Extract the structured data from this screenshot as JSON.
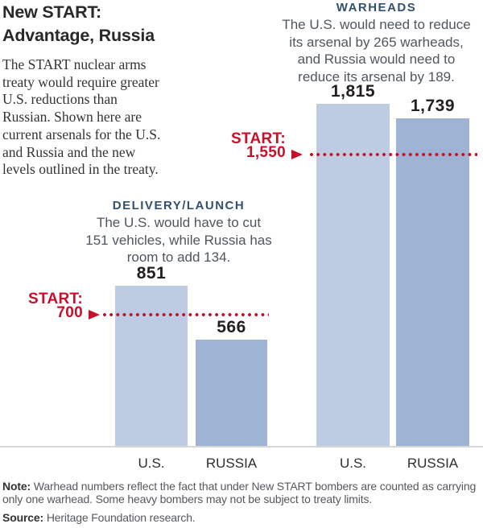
{
  "colors": {
    "start_red": "#c9102b",
    "header_navy": "#33516d",
    "bar_us_light": "#bdcce3",
    "bar_russia_dark": "#9fb3d4"
  },
  "header": {
    "title": "New START:\nAdvantage, Russia",
    "intro": "The START nuclear arms\ntreaty would require greater\nU.S. reductions than\nRussian. Shown here are\ncurrent arsenals for the U.S.\nand Russia and the new\nlevels outlined in the treaty."
  },
  "chart_data": {
    "type": "bar",
    "title": "New START: Advantage, Russia",
    "grid": false,
    "legend": false,
    "ylim": [
      0,
      2370
    ],
    "series_colors": {
      "U.S.": "#bdcce3",
      "RUSSIA": "#9fb3d4"
    },
    "groups": [
      {
        "label": "DELIVERY/LAUNCH",
        "annotation": "The U.S. would have to cut\n151 vehicles, while Russia has\nroom to add 134.",
        "categories": [
          "U.S.",
          "RUSSIA"
        ],
        "values": [
          851,
          566
        ],
        "value_labels": [
          "851",
          "566"
        ],
        "start_limit": 700,
        "start_limit_label": "START:\n700"
      },
      {
        "label": "WARHEADS",
        "annotation": "The U.S. would need to reduce\nits arsenal by 265 warheads,\nand Russia would need to\nreduce its arsenal by 189.",
        "categories": [
          "U.S.",
          "RUSSIA"
        ],
        "values": [
          1815,
          1739
        ],
        "value_labels": [
          "1,815",
          "1,739"
        ],
        "start_limit": 1550,
        "start_limit_label": "START:\n1,550"
      }
    ]
  },
  "footer": {
    "note_label": "Note:",
    "note_text": "Warhead numbers reflect the fact that under New START bombers are counted as carrying\nonly one warhead. Some heavy bombers may not be subject to treaty limits.",
    "source_label": "Source:",
    "source_text": "Heritage Foundation research."
  }
}
